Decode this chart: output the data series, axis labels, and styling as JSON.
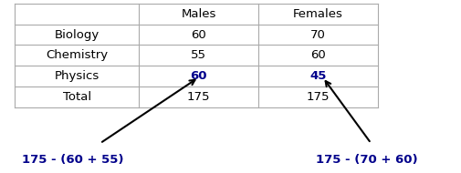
{
  "col_headers": [
    "",
    "Males",
    "Females"
  ],
  "rows": [
    [
      "Biology",
      "60",
      "70"
    ],
    [
      "Chemistry",
      "55",
      "60"
    ],
    [
      "Physics",
      "60",
      "45"
    ],
    [
      "Total",
      "175",
      "175"
    ]
  ],
  "physics_males_color": "#00008B",
  "physics_females_color": "#00008B",
  "normal_text_color": "#000000",
  "annotation_color": "#00008B",
  "annotation_left": "175 - (60 + 55)",
  "annotation_right": "175 - (70 + 60)",
  "background_color": "#ffffff",
  "border_color": "#aaaaaa"
}
